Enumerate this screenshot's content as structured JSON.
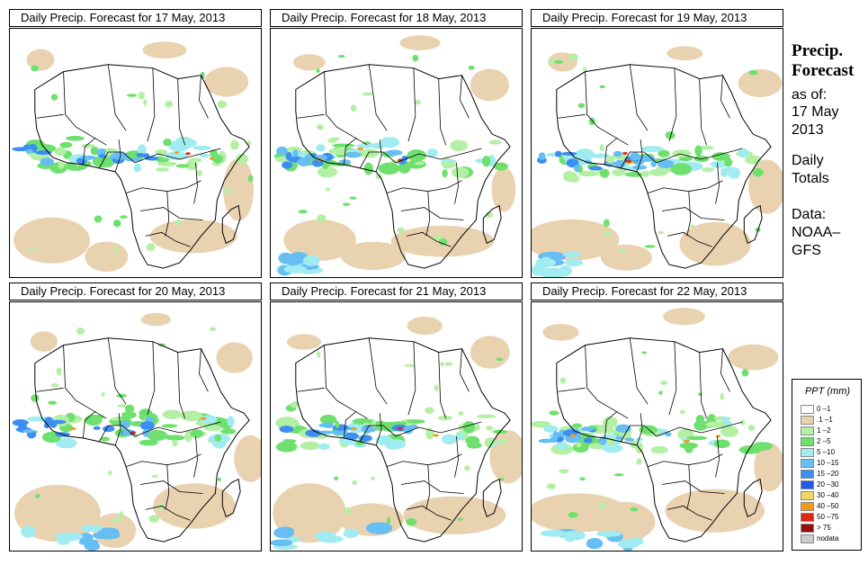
{
  "panels": [
    {
      "title": "Daily Precip. Forecast for  17 May, 2013",
      "variant": 0
    },
    {
      "title": "Daily Precip. Forecast for  18 May, 2013",
      "variant": 1
    },
    {
      "title": "Daily Precip. Forecast for  19 May, 2013",
      "variant": 2
    },
    {
      "title": "Daily Precip. Forecast for  20 May, 2013",
      "variant": 3
    },
    {
      "title": "Daily Precip. Forecast for  21 May, 2013",
      "variant": 4
    },
    {
      "title": "Daily Precip. Forecast for  22 May, 2013",
      "variant": 5
    }
  ],
  "side": {
    "title_line1": "Precip.",
    "title_line2": "Forecast",
    "as_of": "as of:",
    "date_line1": "17 May",
    "date_line2": "2013",
    "totals_line1": "Daily",
    "totals_line2": "Totals",
    "data_line1": "Data:",
    "data_line2": "NOAA–",
    "data_line3": "GFS"
  },
  "legend": {
    "title": "PPT (mm)",
    "items": [
      {
        "label": "0 –1",
        "color": "#ffffff"
      },
      {
        "label": ".1 –1",
        "color": "#e8d2b0"
      },
      {
        "label": "1 –2",
        "color": "#b4f0a4"
      },
      {
        "label": "2 –5",
        "color": "#6ee06e"
      },
      {
        "label": "5 –10",
        "color": "#a0ecf0"
      },
      {
        "label": "10 –15",
        "color": "#66bef2"
      },
      {
        "label": "15 –20",
        "color": "#3c8ef2"
      },
      {
        "label": "20 –30",
        "color": "#1e5ae6"
      },
      {
        "label": "30 –40",
        "color": "#f2d860"
      },
      {
        "label": "40 –50",
        "color": "#f29a1e"
      },
      {
        "label": "50 –75",
        "color": "#e02810"
      },
      {
        "label": "> 75",
        "color": "#9a0c0c"
      },
      {
        "label": "nodata",
        "color": "#cccccc"
      }
    ]
  }
}
